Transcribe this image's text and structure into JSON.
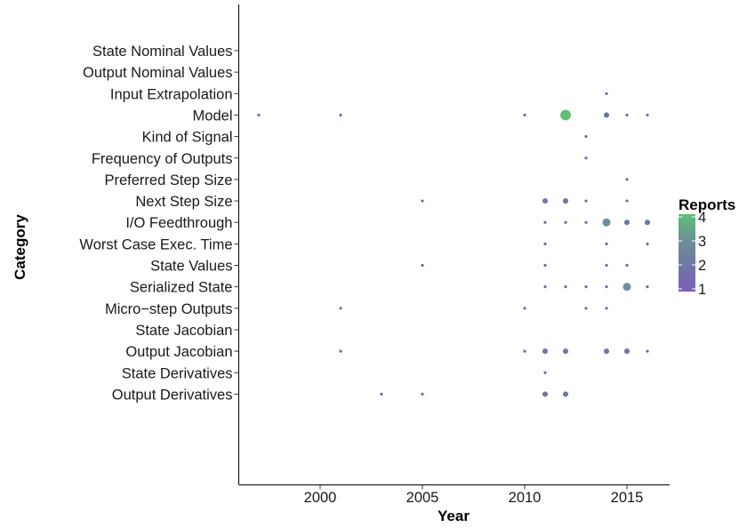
{
  "chart_data": {
    "type": "scatter",
    "title": "",
    "xlabel": "Year",
    "ylabel": "Category",
    "xlim": [
      1996,
      2018
    ],
    "x_ticks": [
      2000,
      2005,
      2010,
      2015
    ],
    "categories": [
      "State Nominal Values",
      "Output Nominal Values",
      "Input Extrapolation",
      "Model",
      "Kind of Signal",
      "Frequency of Outputs",
      "Preferred Step Size",
      "Next Step Size",
      "I/O Feedthrough",
      "Worst Case Exec. Time",
      "State Values",
      "Serialized State",
      "Micro−step Outputs",
      "State Jacobian",
      "Output Jacobian",
      "State Derivatives",
      "Output Derivatives"
    ],
    "legend": {
      "title": "Reports",
      "range": [
        1,
        4
      ],
      "ticks": [
        1,
        2,
        3,
        4
      ],
      "colors": [
        "#7a5fb5",
        "#6e78a6",
        "#6e8f99",
        "#5cc076"
      ],
      "placement": "right"
    },
    "grid": false,
    "points": [
      {
        "category": "Input Extrapolation",
        "year": 2014,
        "reports": 1
      },
      {
        "category": "Model",
        "year": 1997,
        "reports": 1
      },
      {
        "category": "Model",
        "year": 2001,
        "reports": 1
      },
      {
        "category": "Model",
        "year": 2010,
        "reports": 1
      },
      {
        "category": "Model",
        "year": 2012,
        "reports": 4
      },
      {
        "category": "Model",
        "year": 2014,
        "reports": 2
      },
      {
        "category": "Model",
        "year": 2015,
        "reports": 1
      },
      {
        "category": "Model",
        "year": 2016,
        "reports": 1
      },
      {
        "category": "Kind of Signal",
        "year": 2013,
        "reports": 1
      },
      {
        "category": "Frequency of Outputs",
        "year": 2013,
        "reports": 1
      },
      {
        "category": "Preferred Step Size",
        "year": 2015,
        "reports": 1
      },
      {
        "category": "Next Step Size",
        "year": 2005,
        "reports": 1
      },
      {
        "category": "Next Step Size",
        "year": 2011,
        "reports": 2
      },
      {
        "category": "Next Step Size",
        "year": 2012,
        "reports": 2
      },
      {
        "category": "Next Step Size",
        "year": 2013,
        "reports": 1
      },
      {
        "category": "Next Step Size",
        "year": 2015,
        "reports": 1
      },
      {
        "category": "I/O Feedthrough",
        "year": 2011,
        "reports": 1
      },
      {
        "category": "I/O Feedthrough",
        "year": 2012,
        "reports": 1
      },
      {
        "category": "I/O Feedthrough",
        "year": 2013,
        "reports": 1
      },
      {
        "category": "I/O Feedthrough",
        "year": 2014,
        "reports": 3
      },
      {
        "category": "I/O Feedthrough",
        "year": 2015,
        "reports": 2
      },
      {
        "category": "I/O Feedthrough",
        "year": 2016,
        "reports": 2
      },
      {
        "category": "Worst Case Exec. Time",
        "year": 2011,
        "reports": 1
      },
      {
        "category": "Worst Case Exec. Time",
        "year": 2014,
        "reports": 1
      },
      {
        "category": "Worst Case Exec. Time",
        "year": 2016,
        "reports": 1
      },
      {
        "category": "State Values",
        "year": 2005,
        "reports": 1
      },
      {
        "category": "State Values",
        "year": 2011,
        "reports": 1
      },
      {
        "category": "State Values",
        "year": 2014,
        "reports": 1
      },
      {
        "category": "State Values",
        "year": 2015,
        "reports": 1
      },
      {
        "category": "Serialized State",
        "year": 2011,
        "reports": 1
      },
      {
        "category": "Serialized State",
        "year": 2012,
        "reports": 1
      },
      {
        "category": "Serialized State",
        "year": 2013,
        "reports": 1
      },
      {
        "category": "Serialized State",
        "year": 2014,
        "reports": 1
      },
      {
        "category": "Serialized State",
        "year": 2015,
        "reports": 3
      },
      {
        "category": "Serialized State",
        "year": 2016,
        "reports": 1
      },
      {
        "category": "Micro−step Outputs",
        "year": 2001,
        "reports": 1
      },
      {
        "category": "Micro−step Outputs",
        "year": 2010,
        "reports": 1
      },
      {
        "category": "Micro−step Outputs",
        "year": 2013,
        "reports": 1
      },
      {
        "category": "Micro−step Outputs",
        "year": 2014,
        "reports": 1
      },
      {
        "category": "Output Jacobian",
        "year": 2001,
        "reports": 1
      },
      {
        "category": "Output Jacobian",
        "year": 2010,
        "reports": 1
      },
      {
        "category": "Output Jacobian",
        "year": 2011,
        "reports": 2
      },
      {
        "category": "Output Jacobian",
        "year": 2012,
        "reports": 2
      },
      {
        "category": "Output Jacobian",
        "year": 2014,
        "reports": 2
      },
      {
        "category": "Output Jacobian",
        "year": 2015,
        "reports": 2
      },
      {
        "category": "Output Jacobian",
        "year": 2016,
        "reports": 1
      },
      {
        "category": "State Derivatives",
        "year": 2011,
        "reports": 1
      },
      {
        "category": "Output Derivatives",
        "year": 2003,
        "reports": 1
      },
      {
        "category": "Output Derivatives",
        "year": 2005,
        "reports": 1
      },
      {
        "category": "Output Derivatives",
        "year": 2011,
        "reports": 2
      },
      {
        "category": "Output Derivatives",
        "year": 2012,
        "reports": 2
      }
    ]
  }
}
